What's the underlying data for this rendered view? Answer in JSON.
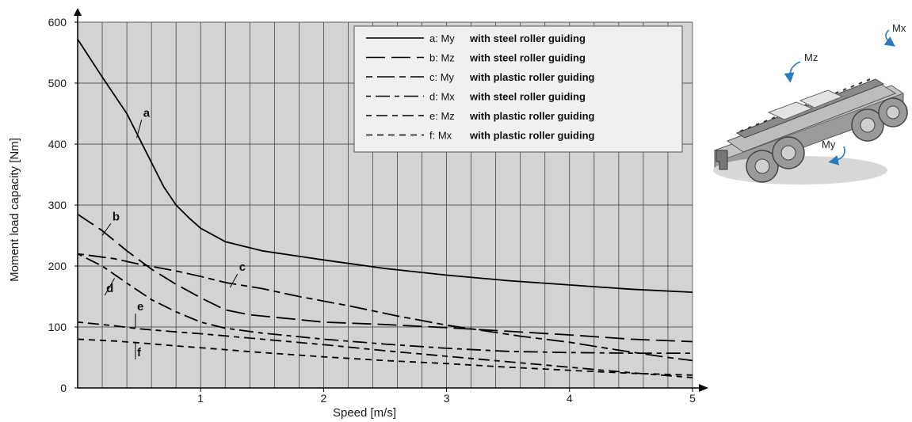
{
  "chart_data": {
    "type": "line",
    "xlabel": "Speed [m/s]",
    "ylabel": "Moment load capacity [Nm]",
    "xlim": [
      0,
      5
    ],
    "ylim": [
      0,
      600
    ],
    "xticks": [
      "1",
      "2",
      "3",
      "4",
      "5"
    ],
    "yticks": [
      "0",
      "100",
      "200",
      "300",
      "400",
      "500",
      "600"
    ],
    "grid": true,
    "legend_position": "top-right",
    "series": [
      {
        "id": "a",
        "label": "a",
        "code": "a: My",
        "description": "with steel roller guiding",
        "dash": "solid",
        "points": [
          [
            0,
            572
          ],
          [
            0.2,
            510
          ],
          [
            0.4,
            450
          ],
          [
            0.5,
            410
          ],
          [
            0.6,
            370
          ],
          [
            0.7,
            330
          ],
          [
            0.8,
            300
          ],
          [
            0.9,
            280
          ],
          [
            1.0,
            262
          ],
          [
            1.2,
            240
          ],
          [
            1.5,
            225
          ],
          [
            2.0,
            210
          ],
          [
            2.5,
            196
          ],
          [
            3.0,
            185
          ],
          [
            3.5,
            176
          ],
          [
            4.0,
            169
          ],
          [
            4.5,
            162
          ],
          [
            5.0,
            157
          ]
        ]
      },
      {
        "id": "b",
        "label": "b",
        "code": "b: Mz",
        "description": "with steel roller guiding",
        "dash": "long",
        "points": [
          [
            0,
            285
          ],
          [
            0.2,
            258
          ],
          [
            0.4,
            225
          ],
          [
            0.6,
            195
          ],
          [
            0.8,
            170
          ],
          [
            1.0,
            148
          ],
          [
            1.2,
            128
          ],
          [
            1.4,
            120
          ],
          [
            1.6,
            116
          ],
          [
            2.0,
            108
          ],
          [
            2.5,
            104
          ],
          [
            3.0,
            99
          ],
          [
            3.5,
            93
          ],
          [
            4.0,
            87
          ],
          [
            4.5,
            80
          ],
          [
            5.0,
            76
          ]
        ]
      },
      {
        "id": "c",
        "label": "c",
        "code": "c: My",
        "description": "with plastic roller guiding",
        "dash": "shortlong",
        "points": [
          [
            0,
            220
          ],
          [
            0.3,
            212
          ],
          [
            0.5,
            203
          ],
          [
            0.8,
            192
          ],
          [
            1.0,
            183
          ],
          [
            1.2,
            173
          ],
          [
            1.5,
            163
          ],
          [
            1.8,
            150
          ],
          [
            2.2,
            135
          ],
          [
            2.6,
            118
          ],
          [
            3.0,
            103
          ],
          [
            3.3,
            94
          ],
          [
            3.6,
            85
          ],
          [
            4.0,
            75
          ],
          [
            4.4,
            62
          ],
          [
            4.8,
            50
          ],
          [
            5.0,
            45
          ]
        ]
      },
      {
        "id": "d",
        "label": "d",
        "code": "d: Mx",
        "description": "with steel roller guiding",
        "dash": "shortlong2",
        "points": [
          [
            0,
            220
          ],
          [
            0.2,
            200
          ],
          [
            0.4,
            172
          ],
          [
            0.6,
            145
          ],
          [
            0.8,
            125
          ],
          [
            1.0,
            108
          ],
          [
            1.2,
            98
          ],
          [
            1.5,
            90
          ],
          [
            2.0,
            80
          ],
          [
            2.5,
            72
          ],
          [
            3.0,
            65
          ],
          [
            3.5,
            60
          ],
          [
            4.0,
            58
          ],
          [
            4.5,
            57
          ],
          [
            5.0,
            57
          ]
        ]
      },
      {
        "id": "e",
        "label": "e",
        "code": "e: Mz",
        "description": "with plastic roller guiding",
        "dash": "shortlong3",
        "points": [
          [
            0,
            108
          ],
          [
            0.3,
            102
          ],
          [
            0.5,
            97
          ],
          [
            0.8,
            92
          ],
          [
            1.0,
            89
          ],
          [
            1.5,
            80
          ],
          [
            2.0,
            71
          ],
          [
            2.5,
            61
          ],
          [
            3.0,
            52
          ],
          [
            3.5,
            43
          ],
          [
            4.0,
            34
          ],
          [
            4.5,
            25
          ],
          [
            5.0,
            17
          ]
        ]
      },
      {
        "id": "f",
        "label": "f",
        "code": "f: Mx",
        "description": "with plastic roller guiding",
        "dash": "short",
        "points": [
          [
            0,
            80
          ],
          [
            0.3,
            77
          ],
          [
            0.5,
            74
          ],
          [
            0.8,
            69
          ],
          [
            1.0,
            66
          ],
          [
            1.5,
            58
          ],
          [
            2.0,
            51
          ],
          [
            2.5,
            45
          ],
          [
            3.0,
            40
          ],
          [
            3.5,
            34
          ],
          [
            4.0,
            29
          ],
          [
            4.5,
            24
          ],
          [
            5.0,
            21
          ]
        ]
      }
    ]
  },
  "figure": {
    "moment_labels": [
      "Mz",
      "Mx",
      "My"
    ]
  }
}
